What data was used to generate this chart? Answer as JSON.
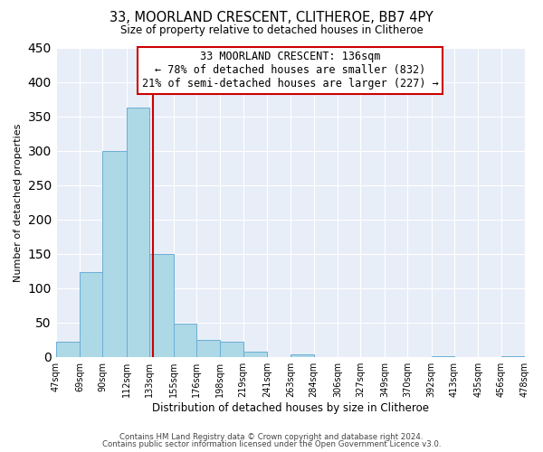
{
  "title": "33, MOORLAND CRESCENT, CLITHEROE, BB7 4PY",
  "subtitle": "Size of property relative to detached houses in Clitheroe",
  "xlabel": "Distribution of detached houses by size in Clitheroe",
  "ylabel": "Number of detached properties",
  "bin_edges": [
    47,
    69,
    90,
    112,
    133,
    155,
    176,
    198,
    219,
    241,
    263,
    284,
    306,
    327,
    349,
    370,
    392,
    413,
    435,
    456,
    478
  ],
  "bin_labels": [
    "47sqm",
    "69sqm",
    "90sqm",
    "112sqm",
    "133sqm",
    "155sqm",
    "176sqm",
    "198sqm",
    "219sqm",
    "241sqm",
    "263sqm",
    "284sqm",
    "306sqm",
    "327sqm",
    "349sqm",
    "370sqm",
    "392sqm",
    "413sqm",
    "435sqm",
    "456sqm",
    "478sqm"
  ],
  "counts": [
    22,
    124,
    300,
    363,
    150,
    48,
    24,
    22,
    7,
    0,
    3,
    0,
    0,
    0,
    0,
    0,
    1,
    0,
    0,
    1
  ],
  "bar_color": "#add8e6",
  "bar_edge_color": "#6baed6",
  "property_size": 136,
  "vline_color": "#cc0000",
  "annotation_title": "33 MOORLAND CRESCENT: 136sqm",
  "annotation_line1": "← 78% of detached houses are smaller (832)",
  "annotation_line2": "21% of semi-detached houses are larger (227) →",
  "annotation_box_edge": "#cc0000",
  "ylim": [
    0,
    450
  ],
  "footer1": "Contains HM Land Registry data © Crown copyright and database right 2024.",
  "footer2": "Contains public sector information licensed under the Open Government Licence v3.0.",
  "plot_bg_color": "#e8eef8",
  "fig_bg_color": "#ffffff"
}
